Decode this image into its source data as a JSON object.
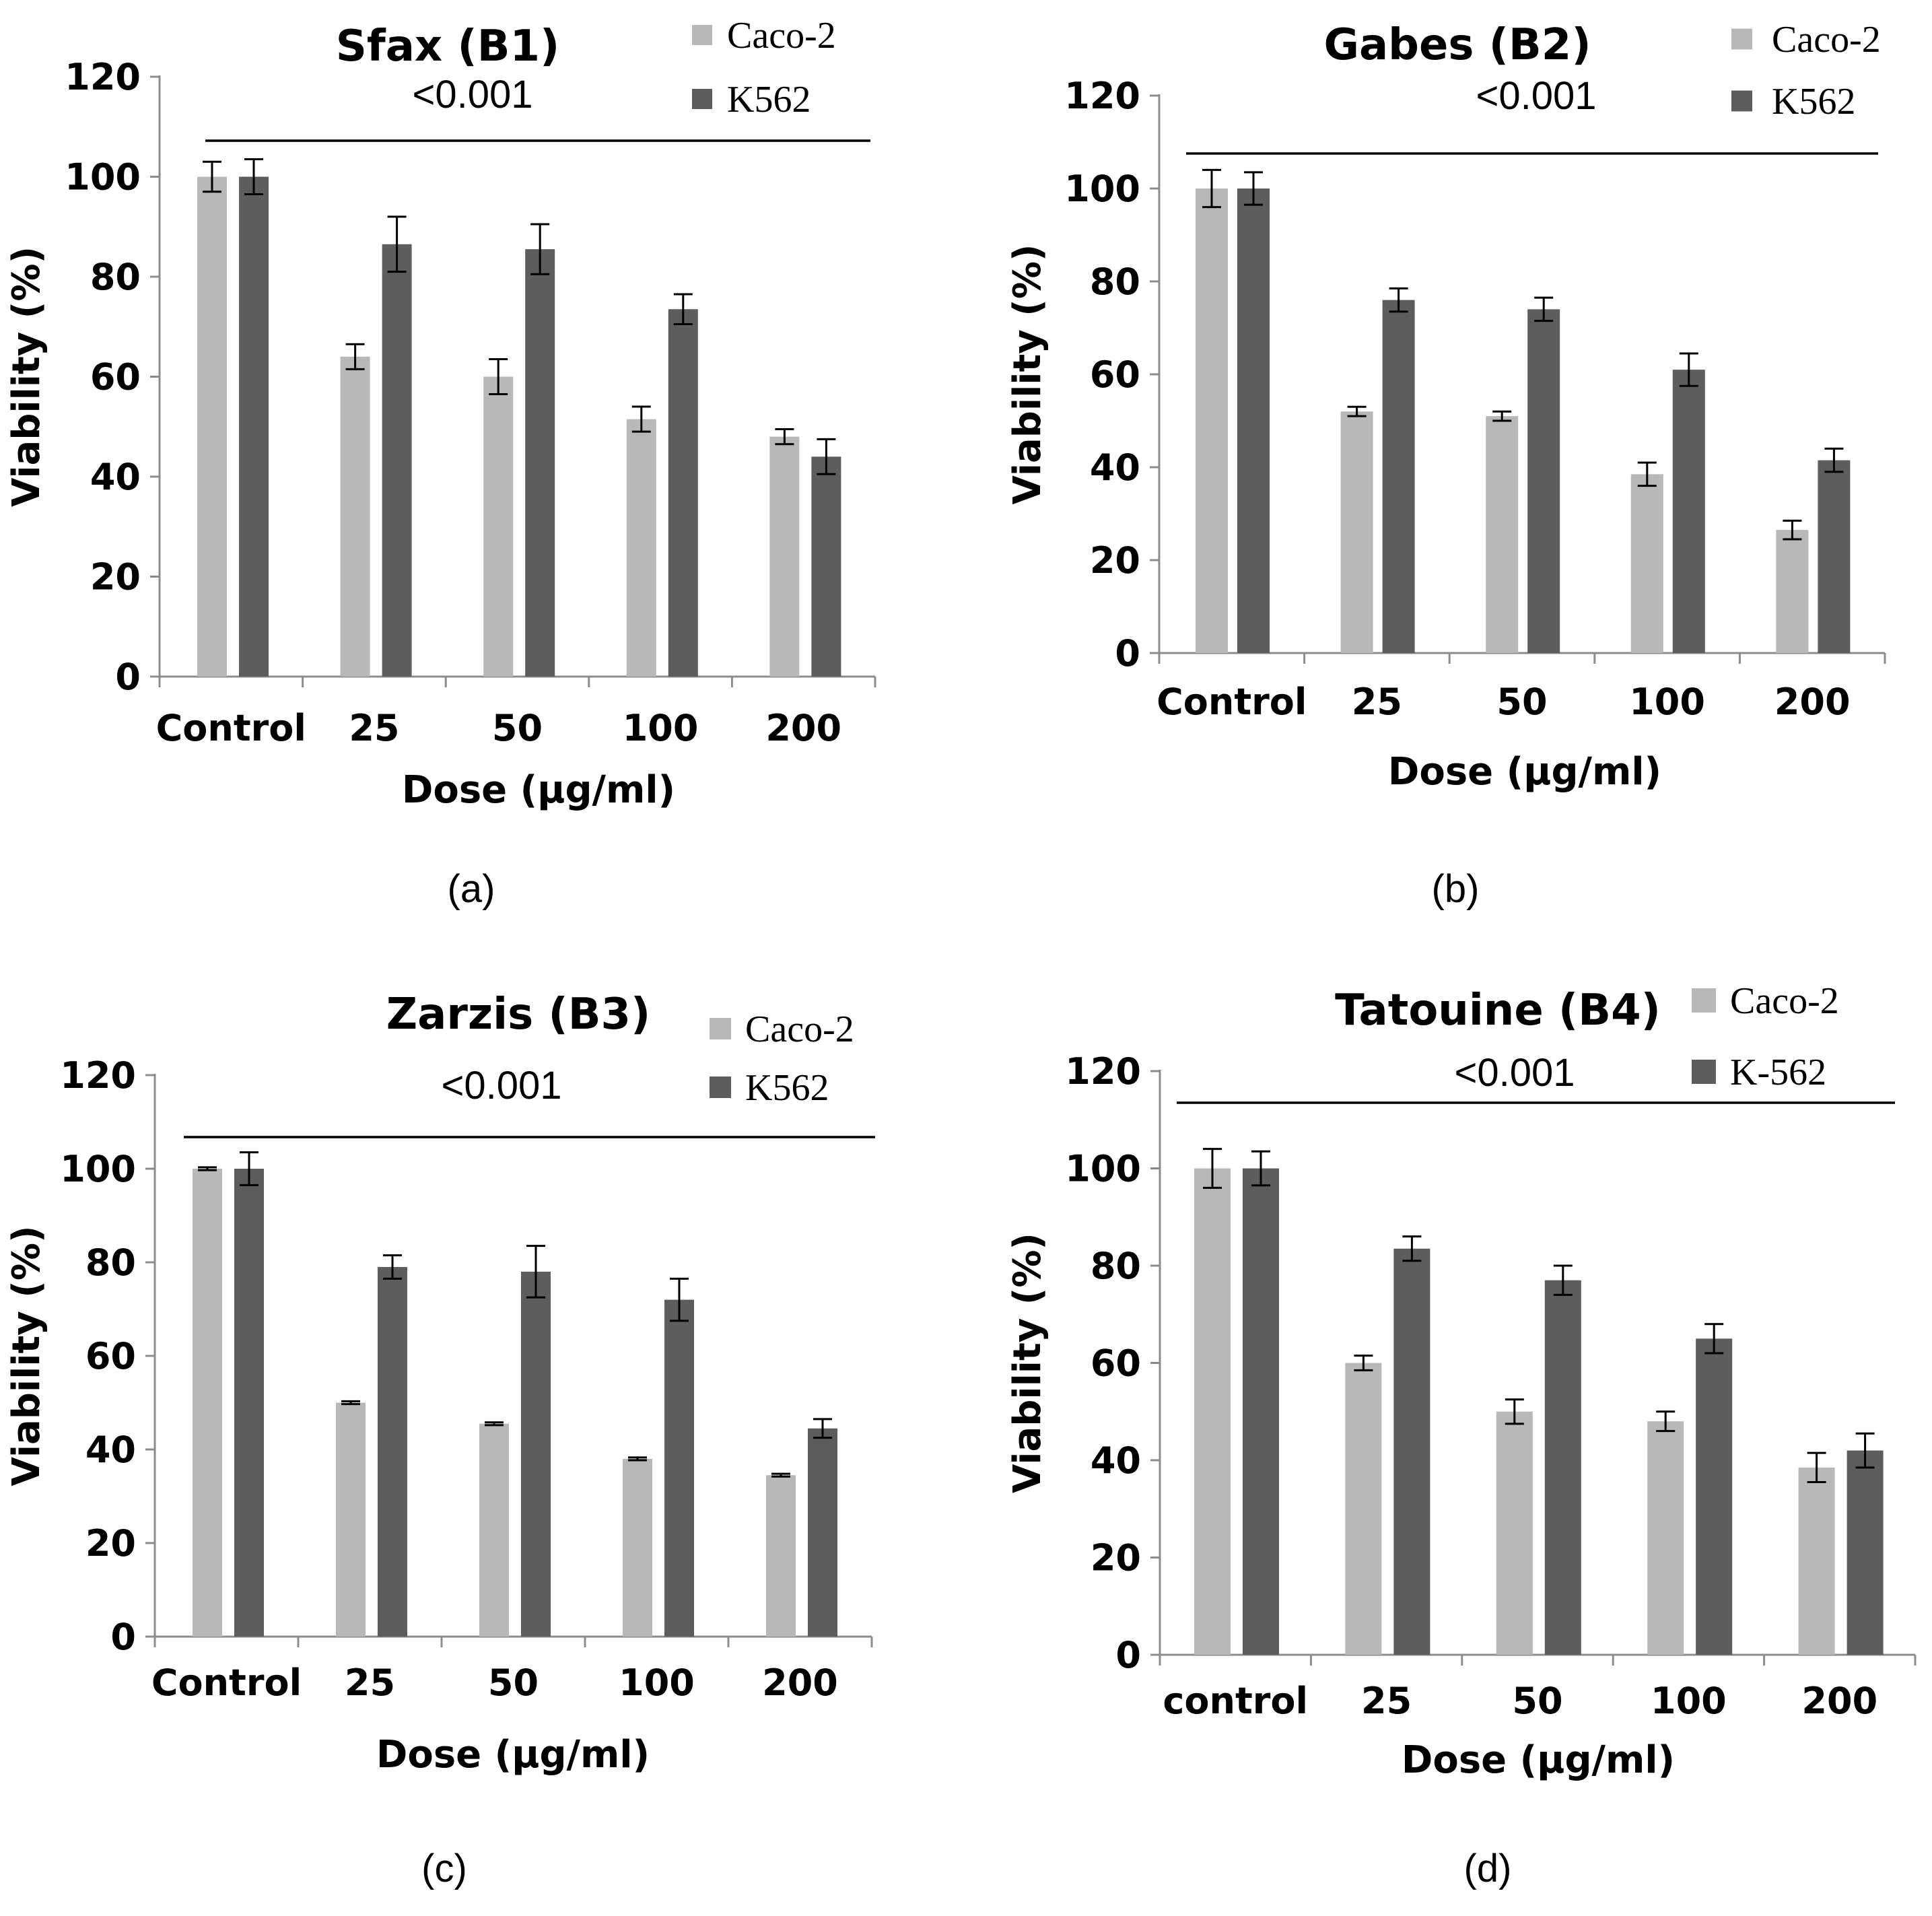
{
  "figure": {
    "colors": {
      "caco2": "#b8b8b8",
      "k562": "#5d5d5d",
      "axis": "#8c8c8c",
      "text": "#000000"
    }
  },
  "chart_data": [
    {
      "type": "bar",
      "title": "Sfax (B1)",
      "panel_label": "(a)",
      "significance": "<0.001",
      "xlabel": "Dose (μg/ml)",
      "ylabel": "Viability (%)",
      "ylim": [
        0,
        120
      ],
      "yticks": [
        0,
        20,
        40,
        60,
        80,
        100,
        120
      ],
      "categories": [
        "Control",
        "25",
        "50",
        "100",
        "200"
      ],
      "legend_position": "top-right",
      "series": [
        {
          "name": "Caco-2",
          "values": [
            100,
            64,
            60,
            51.5,
            48
          ],
          "errors": [
            3,
            2.5,
            3.5,
            2.5,
            1.5
          ]
        },
        {
          "name": "K562",
          "values": [
            100,
            86.5,
            85.5,
            73.5,
            44
          ],
          "errors": [
            3.5,
            5.5,
            5,
            3,
            3.5
          ]
        }
      ]
    },
    {
      "type": "bar",
      "title": "Gabes (B2)",
      "panel_label": "(b)",
      "significance": "<0.001",
      "xlabel": "Dose (μg/ml)",
      "ylabel": "Viability (%)",
      "ylim": [
        0,
        120
      ],
      "yticks": [
        0,
        20,
        40,
        60,
        80,
        100,
        120
      ],
      "categories": [
        "Control",
        "25",
        "50",
        "100",
        "200"
      ],
      "legend_position": "top-right",
      "series": [
        {
          "name": "Caco-2",
          "values": [
            100,
            52,
            51,
            38.5,
            26.5
          ],
          "errors": [
            4,
            1,
            1,
            2.5,
            2
          ]
        },
        {
          "name": "K562",
          "values": [
            100,
            76,
            74,
            61,
            41.5
          ],
          "errors": [
            3.5,
            2.5,
            2.5,
            3.5,
            2.5
          ]
        }
      ]
    },
    {
      "type": "bar",
      "title": "Zarzis (B3)",
      "panel_label": "(c)",
      "significance": "<0.001",
      "xlabel": "Dose (μg/ml)",
      "ylabel": "Viability (%)",
      "ylim": [
        0,
        120
      ],
      "yticks": [
        0,
        20,
        40,
        60,
        80,
        100,
        120
      ],
      "categories": [
        "Control",
        "25",
        "50",
        "100",
        "200"
      ],
      "legend_position": "top-right",
      "series": [
        {
          "name": "Caco-2",
          "values": [
            100,
            50,
            45.5,
            38,
            34.5
          ],
          "errors": [
            0.3,
            0.3,
            0.3,
            0.3,
            0.3
          ]
        },
        {
          "name": "K562",
          "values": [
            100,
            79,
            78,
            72,
            44.5
          ],
          "errors": [
            3.5,
            2.5,
            5.5,
            4.5,
            2
          ]
        }
      ]
    },
    {
      "type": "bar",
      "title": "Tatouine (B4)",
      "panel_label": "(d)",
      "significance": "<0.001",
      "xlabel": "Dose (μg/ml)",
      "ylabel": "Viability (%)",
      "ylim": [
        0,
        120
      ],
      "yticks": [
        0,
        20,
        40,
        60,
        80,
        100,
        120
      ],
      "categories": [
        "control",
        "25",
        "50",
        "100",
        "200"
      ],
      "legend_position": "top-right",
      "series": [
        {
          "name": "Caco-2",
          "values": [
            100,
            60,
            50,
            48,
            38.5
          ],
          "errors": [
            4,
            1.5,
            2.5,
            2,
            3
          ]
        },
        {
          "name": "K-562",
          "values": [
            100,
            83.5,
            77,
            65,
            42
          ],
          "errors": [
            3.5,
            2.5,
            3,
            3,
            3.5
          ]
        }
      ]
    }
  ]
}
